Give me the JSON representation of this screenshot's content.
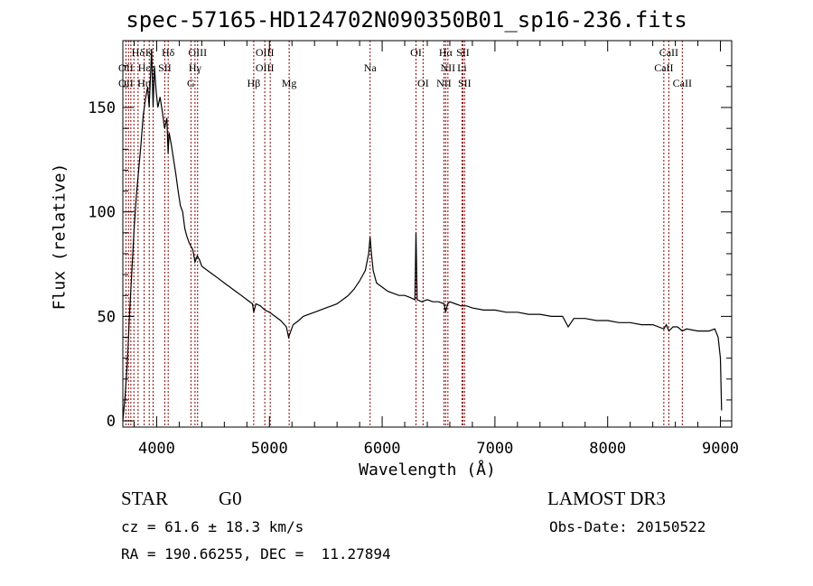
{
  "title": "spec-57165-HD124702N090350B01_sp16-236.fits",
  "info": {
    "object_class": "STAR",
    "subclass": "G0",
    "survey": "LAMOST DR3",
    "redshift": "cz = 61.6 ± 18.3 km/s",
    "obs_date": "Obs-Date: 20150522",
    "coords": "RA = 190.66255, DEC =  11.27894"
  },
  "chart_data": {
    "type": "line",
    "title": "spec-57165-HD124702N090350B01_sp16-236.fits",
    "xlabel": "Wavelength (Å)",
    "ylabel": "Flux (relative)",
    "xlim": [
      3700,
      9100
    ],
    "ylim": [
      -3,
      182
    ],
    "xticks": [
      4000,
      5000,
      6000,
      7000,
      8000,
      9000
    ],
    "yticks": [
      0,
      50,
      100,
      150
    ],
    "x_tick_labels": [
      "4000",
      "5000",
      "6000",
      "7000",
      "8000",
      "9000"
    ],
    "y_tick_labels": [
      "0",
      "50",
      "100",
      "150"
    ],
    "grid": false,
    "line_color": "#000000",
    "marker_color": "#8b0000",
    "series": [
      {
        "values": [
          [
            3700,
            0
          ],
          [
            3720,
            12
          ],
          [
            3740,
            28
          ],
          [
            3760,
            52
          ],
          [
            3780,
            72
          ],
          [
            3800,
            92
          ],
          [
            3820,
            108
          ],
          [
            3840,
            120
          ],
          [
            3860,
            132
          ],
          [
            3880,
            146
          ],
          [
            3900,
            154
          ],
          [
            3920,
            160
          ],
          [
            3933,
            150
          ],
          [
            3945,
            165
          ],
          [
            3955,
            178
          ],
          [
            3968,
            150
          ],
          [
            3980,
            170
          ],
          [
            3995,
            158
          ],
          [
            4010,
            150
          ],
          [
            4030,
            155
          ],
          [
            4050,
            148
          ],
          [
            4070,
            140
          ],
          [
            4090,
            145
          ],
          [
            4101,
            128
          ],
          [
            4110,
            138
          ],
          [
            4130,
            132
          ],
          [
            4150,
            125
          ],
          [
            4170,
            118
          ],
          [
            4190,
            110
          ],
          [
            4210,
            103
          ],
          [
            4230,
            100
          ],
          [
            4250,
            92
          ],
          [
            4270,
            88
          ],
          [
            4290,
            85
          ],
          [
            4320,
            82
          ],
          [
            4340,
            76
          ],
          [
            4360,
            79
          ],
          [
            4380,
            77
          ],
          [
            4400,
            74
          ],
          [
            4450,
            72
          ],
          [
            4500,
            70
          ],
          [
            4550,
            68
          ],
          [
            4600,
            66
          ],
          [
            4650,
            64
          ],
          [
            4700,
            62
          ],
          [
            4750,
            60
          ],
          [
            4800,
            58
          ],
          [
            4850,
            56
          ],
          [
            4861,
            52
          ],
          [
            4880,
            56
          ],
          [
            4920,
            55
          ],
          [
            4960,
            53
          ],
          [
            5000,
            52
          ],
          [
            5050,
            50
          ],
          [
            5100,
            48
          ],
          [
            5150,
            45
          ],
          [
            5170,
            40
          ],
          [
            5190,
            43
          ],
          [
            5210,
            46
          ],
          [
            5260,
            48
          ],
          [
            5300,
            50
          ],
          [
            5350,
            51
          ],
          [
            5400,
            52
          ],
          [
            5450,
            53
          ],
          [
            5500,
            54
          ],
          [
            5550,
            55
          ],
          [
            5600,
            56
          ],
          [
            5650,
            58
          ],
          [
            5700,
            60
          ],
          [
            5750,
            63
          ],
          [
            5800,
            67
          ],
          [
            5850,
            72
          ],
          [
            5880,
            80
          ],
          [
            5893,
            88
          ],
          [
            5905,
            80
          ],
          [
            5920,
            72
          ],
          [
            5950,
            66
          ],
          [
            6000,
            64
          ],
          [
            6050,
            62
          ],
          [
            6100,
            61
          ],
          [
            6150,
            60
          ],
          [
            6200,
            60
          ],
          [
            6250,
            59
          ],
          [
            6290,
            58
          ],
          [
            6300,
            90
          ],
          [
            6310,
            58
          ],
          [
            6350,
            57
          ],
          [
            6400,
            58
          ],
          [
            6450,
            57
          ],
          [
            6500,
            57
          ],
          [
            6550,
            56
          ],
          [
            6563,
            52
          ],
          [
            6580,
            56
          ],
          [
            6600,
            57
          ],
          [
            6650,
            56
          ],
          [
            6700,
            55
          ],
          [
            6750,
            55
          ],
          [
            6800,
            54
          ],
          [
            6900,
            53
          ],
          [
            7000,
            53
          ],
          [
            7100,
            52
          ],
          [
            7200,
            52
          ],
          [
            7300,
            51
          ],
          [
            7400,
            51
          ],
          [
            7500,
            50
          ],
          [
            7600,
            50
          ],
          [
            7650,
            45
          ],
          [
            7700,
            49
          ],
          [
            7800,
            49
          ],
          [
            7900,
            48
          ],
          [
            8000,
            48
          ],
          [
            8100,
            47
          ],
          [
            8200,
            47
          ],
          [
            8300,
            46
          ],
          [
            8400,
            46
          ],
          [
            8498,
            44
          ],
          [
            8520,
            46
          ],
          [
            8542,
            43
          ],
          [
            8580,
            45
          ],
          [
            8620,
            45
          ],
          [
            8662,
            43
          ],
          [
            8700,
            44
          ],
          [
            8800,
            43
          ],
          [
            8900,
            43
          ],
          [
            8950,
            44
          ],
          [
            8980,
            40
          ],
          [
            9000,
            30
          ],
          [
            9010,
            5
          ]
        ]
      }
    ],
    "line_markers": [
      {
        "label": "Hδ",
        "x": 3835,
        "row": 1
      },
      {
        "label": "K",
        "x": 3934,
        "row": 1
      },
      {
        "label": "Hδ",
        "x": 4102,
        "row": 1
      },
      {
        "label": "OIII",
        "x": 4363,
        "row": 1
      },
      {
        "label": "OIII",
        "x": 4959,
        "row": 1
      },
      {
        "label": "OI",
        "x": 6300,
        "row": 1
      },
      {
        "label": "Hα",
        "x": 6563,
        "row": 1
      },
      {
        "label": "SII",
        "x": 6716,
        "row": 1
      },
      {
        "label": "CaII",
        "x": 8542,
        "row": 1
      },
      {
        "label": "OII",
        "x": 3727,
        "row": 2
      },
      {
        "label": "Hε",
        "x": 3889,
        "row": 2
      },
      {
        "label": "SII",
        "x": 4072,
        "row": 2
      },
      {
        "label": "Hγ",
        "x": 4340,
        "row": 2
      },
      {
        "label": "OIII",
        "x": 4959,
        "row": 2
      },
      {
        "label": "Na",
        "x": 5893,
        "row": 2
      },
      {
        "label": "NII",
        "x": 6583,
        "row": 2
      },
      {
        "label": "Li",
        "x": 6708,
        "row": 2
      },
      {
        "label": "CaII",
        "x": 8498,
        "row": 2
      },
      {
        "label": "OII",
        "x": 3727,
        "row": 3
      },
      {
        "label": "Hη",
        "x": 3889,
        "row": 3
      },
      {
        "label": "G",
        "x": 4304,
        "row": 3
      },
      {
        "label": "Hβ",
        "x": 4861,
        "row": 3
      },
      {
        "label": "Mg",
        "x": 5175,
        "row": 3
      },
      {
        "label": "OI",
        "x": 6363,
        "row": 3
      },
      {
        "label": "NII",
        "x": 6548,
        "row": 3
      },
      {
        "label": "SII",
        "x": 6731,
        "row": 3
      },
      {
        "label": "CaII",
        "x": 8662,
        "row": 3
      }
    ],
    "marker_lines_x": [
      3727,
      3750,
      3771,
      3798,
      3835,
      3889,
      3934,
      3968,
      4072,
      4102,
      4304,
      4340,
      4363,
      4861,
      4959,
      5007,
      5175,
      5893,
      6300,
      6363,
      6548,
      6563,
      6583,
      6708,
      6716,
      6731,
      8498,
      8542,
      8662
    ]
  }
}
